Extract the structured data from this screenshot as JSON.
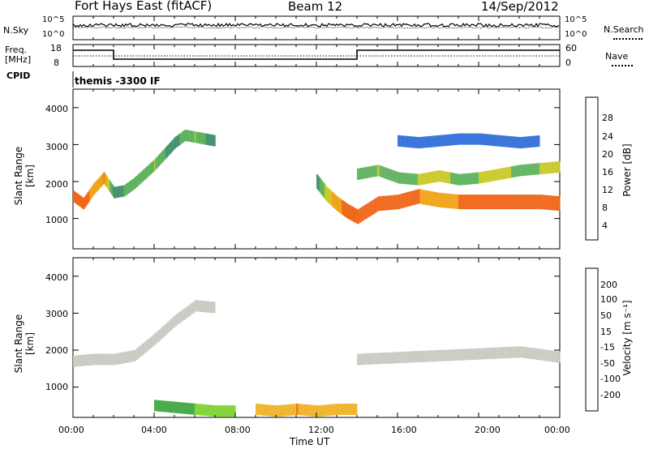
{
  "header": {
    "radar": "Fort Hays East (fitACF)",
    "beam": "Beam 12",
    "date": "14/Sep/2012"
  },
  "top_panels": {
    "nsky_label": "N.Sky",
    "nsky_ticks": [
      "10^5",
      "10^0"
    ],
    "nsearch_label": "N.Search",
    "freq_label_1": "Freq.",
    "freq_label_2": "[MHz]",
    "freq_ticks": [
      "18",
      "8"
    ],
    "nave_label": "Nave",
    "nave_ticks": [
      "60",
      "0"
    ],
    "cpid_label": "CPID",
    "cpid_value": "themis -3300 IF"
  },
  "colors": {
    "power": [
      "#1030d0",
      "#2a6ad8",
      "#3e8f6a",
      "#5ab05a",
      "#c8c820",
      "#f0a010",
      "#f06010",
      "#e81010"
    ],
    "velocity": [
      "#2040c0",
      "#2a6ad8",
      "#3aa53a",
      "#7ad02a",
      "#c8c8c0",
      "#f0b020",
      "#f07010",
      "#e81010"
    ]
  },
  "chart_data": [
    {
      "type": "heatmap",
      "title": "Power",
      "ylabel": "Slant Range [km]",
      "ylim": [
        180,
        4500
      ],
      "yticks": [
        "1000",
        "2000",
        "3000",
        "4000"
      ],
      "colorbar_label": "Power [dB]",
      "colorbar_ticks": [
        "4",
        "8",
        "12",
        "16",
        "20",
        "24",
        "28"
      ],
      "series": [
        {
          "x": [
            0.0,
            0.5,
            1.0,
            1.5,
            2.0,
            2.5,
            3.0,
            3.5,
            4.0,
            4.5,
            5.0,
            5.5,
            6.0,
            6.5,
            7.0
          ],
          "y": [
            1600,
            1400,
            1800,
            2100,
            1700,
            1750,
            1950,
            2200,
            2450,
            2750,
            3050,
            3250,
            3200,
            3150,
            3100
          ],
          "values": [
            26,
            28,
            24,
            26,
            12,
            14,
            16,
            14,
            18,
            14,
            12,
            16,
            18,
            14,
            10
          ]
        },
        {
          "x": [
            12.0,
            12.5,
            13.0,
            13.5,
            14.0,
            15.0,
            16.0,
            17.0,
            18.0,
            19.0,
            20.0,
            21.0,
            22.0,
            23.0,
            24.0
          ],
          "y": [
            2000,
            1650,
            1400,
            1200,
            1050,
            1400,
            1450,
            1600,
            1500,
            1450,
            1450,
            1450,
            1450,
            1450,
            1400
          ],
          "values": [
            12,
            20,
            24,
            28,
            28,
            28,
            26,
            26,
            24,
            26,
            26,
            26,
            26,
            28,
            28
          ]
        },
        {
          "x": [
            14.0,
            15.0,
            16.0,
            17.0,
            18.0,
            19.0,
            20.0,
            21.0,
            22.0,
            23.0,
            24.0
          ],
          "y": [
            2200,
            2300,
            2100,
            2050,
            2150,
            2050,
            2100,
            2200,
            2300,
            2350,
            2400
          ],
          "values": [
            14,
            18,
            16,
            18,
            20,
            16,
            18,
            20,
            16,
            18,
            18
          ]
        },
        {
          "x": [
            16.0,
            17.0,
            18.0,
            19.0,
            20.0,
            21.0,
            22.0,
            23.0
          ],
          "y": [
            3100,
            3050,
            3100,
            3150,
            3150,
            3100,
            3050,
            3100
          ],
          "values": [
            6,
            6,
            8,
            6,
            6,
            8,
            6,
            6
          ]
        }
      ]
    },
    {
      "type": "heatmap",
      "title": "Velocity",
      "ylabel": "Slant Range [km]",
      "xlabel": "Time UT",
      "xlim": [
        0,
        24
      ],
      "xticks": [
        "00:00",
        "04:00",
        "08:00",
        "12:00",
        "16:00",
        "20:00",
        "00:00"
      ],
      "ylim": [
        180,
        4500
      ],
      "yticks": [
        "1000",
        "2000",
        "3000",
        "4000"
      ],
      "colorbar_label": "Velocity [m s⁻¹]",
      "colorbar_ticks": [
        "200",
        "100",
        "50",
        "15",
        "-15",
        "-50",
        "-100",
        "-200"
      ],
      "series": [
        {
          "x": [
            0.0,
            1.0,
            2.0,
            3.0,
            4.0,
            5.0,
            6.0,
            7.0
          ],
          "y": [
            1700,
            1750,
            1750,
            1850,
            2300,
            2800,
            3200,
            3150
          ],
          "values": [
            0,
            0,
            0,
            0,
            0,
            0,
            0,
            0
          ]
        },
        {
          "x": [
            14.0,
            16.0,
            18.0,
            20.0,
            22.0,
            24.0
          ],
          "y": [
            1750,
            1800,
            1850,
            1900,
            1950,
            1800
          ],
          "values": [
            0,
            0,
            0,
            0,
            0,
            0
          ]
        },
        {
          "x": [
            4.0,
            5.0,
            6.0,
            7.0,
            8.0
          ],
          "y": [
            500,
            450,
            400,
            350,
            350
          ],
          "values": [
            40,
            40,
            30,
            30,
            30
          ]
        },
        {
          "x": [
            9.0,
            10.0,
            11.0,
            12.0,
            13.0,
            14.0
          ],
          "y": [
            400,
            350,
            400,
            350,
            400,
            400
          ],
          "values": [
            -40,
            -40,
            -50,
            -40,
            -40,
            -40
          ]
        }
      ]
    }
  ],
  "axes": {
    "time_range_hours": [
      0,
      24
    ]
  }
}
